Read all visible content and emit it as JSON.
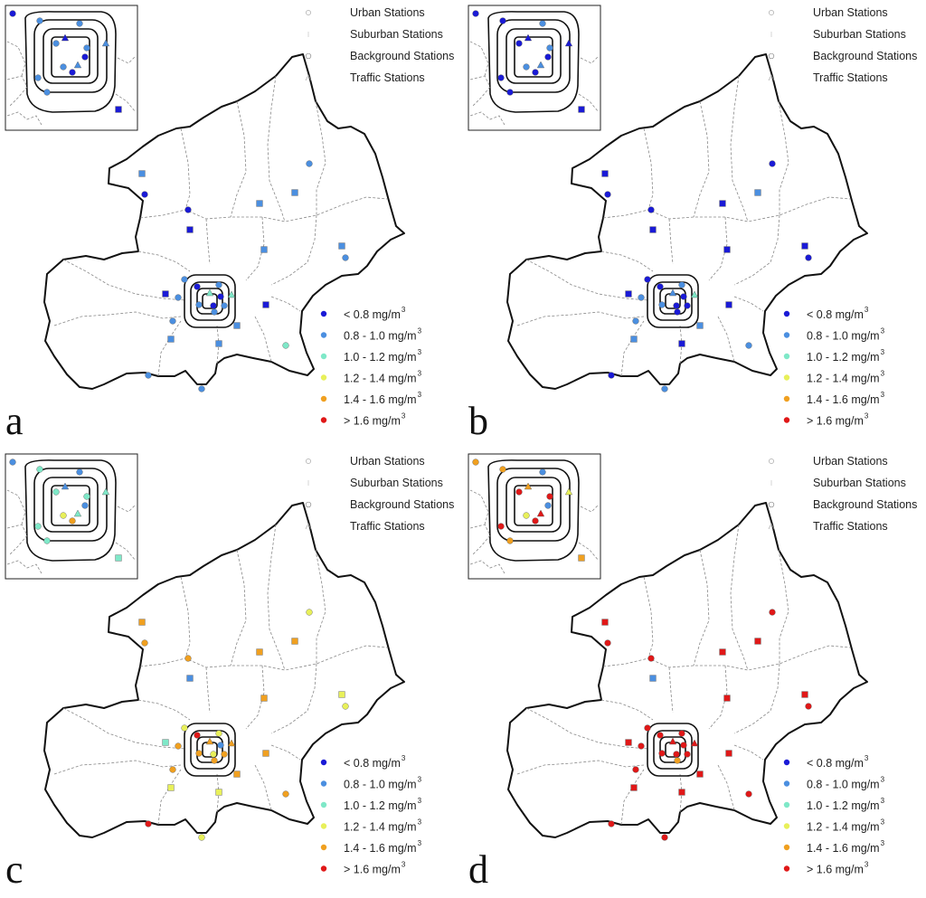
{
  "figure": {
    "station_types": [
      "Urban Stations",
      "Suburban Stations",
      "Background Stations",
      "Traffic Stations"
    ],
    "concentration_classes": [
      {
        "id": "c0",
        "label_main": "< 0.8 mg/m",
        "label_sup": "3",
        "color": "#1a1ad6"
      },
      {
        "id": "c1",
        "label_main": "0.8 - 1.0 mg/m",
        "label_sup": "3",
        "color": "#4b8fe0"
      },
      {
        "id": "c2",
        "label_main": "1.0 - 1.2 mg/m",
        "label_sup": "3",
        "color": "#7fe8c8"
      },
      {
        "id": "c3",
        "label_main": "1.2 - 1.4 mg/m",
        "label_sup": "3",
        "color": "#e8f05a"
      },
      {
        "id": "c4",
        "label_main": "1.4 - 1.6 mg/m",
        "label_sup": "3",
        "color": "#f0a020"
      },
      {
        "id": "c5",
        "label_main": "> 1.6 mg/m",
        "label_sup": "3",
        "color": "#e01818"
      }
    ],
    "panels": [
      {
        "letter": "a",
        "class_index": [
          0,
          1,
          1,
          1,
          0,
          1,
          1,
          0,
          1,
          1,
          0,
          1,
          1,
          0,
          1,
          0,
          1,
          1,
          1,
          0,
          0,
          1,
          1,
          1,
          0,
          1,
          1,
          0,
          1,
          2,
          2,
          1,
          0,
          1,
          1,
          0,
          1,
          1,
          2,
          1,
          1,
          1,
          0,
          1
        ]
      },
      {
        "letter": "b",
        "class_index": [
          0,
          0,
          1,
          0,
          0,
          0,
          1,
          0,
          1,
          1,
          0,
          0,
          0,
          0,
          0,
          0,
          0,
          1,
          0,
          0,
          0,
          0,
          0,
          0,
          0,
          1,
          0,
          0,
          1,
          2,
          1,
          1,
          0,
          0,
          1,
          0,
          1,
          1,
          1,
          0,
          0,
          1,
          0,
          0
        ]
      },
      {
        "letter": "c",
        "class_index": [
          1,
          2,
          1,
          2,
          1,
          2,
          2,
          1,
          3,
          2,
          4,
          2,
          2,
          2,
          4,
          4,
          3,
          4,
          4,
          4,
          1,
          4,
          3,
          3,
          2,
          4,
          3,
          5,
          3,
          4,
          4,
          4,
          3,
          4,
          4,
          4,
          4,
          3,
          4,
          3,
          5,
          3,
          1,
          4
        ]
      },
      {
        "letter": "d",
        "class_index": [
          4,
          4,
          1,
          3,
          4,
          5,
          5,
          1,
          3,
          5,
          5,
          5,
          4,
          4,
          5,
          5,
          5,
          5,
          5,
          5,
          1,
          5,
          5,
          5,
          5,
          5,
          5,
          5,
          5,
          5,
          5,
          5,
          5,
          5,
          5,
          5,
          5,
          5,
          5,
          5,
          5,
          5,
          5,
          4
        ]
      }
    ]
  }
}
